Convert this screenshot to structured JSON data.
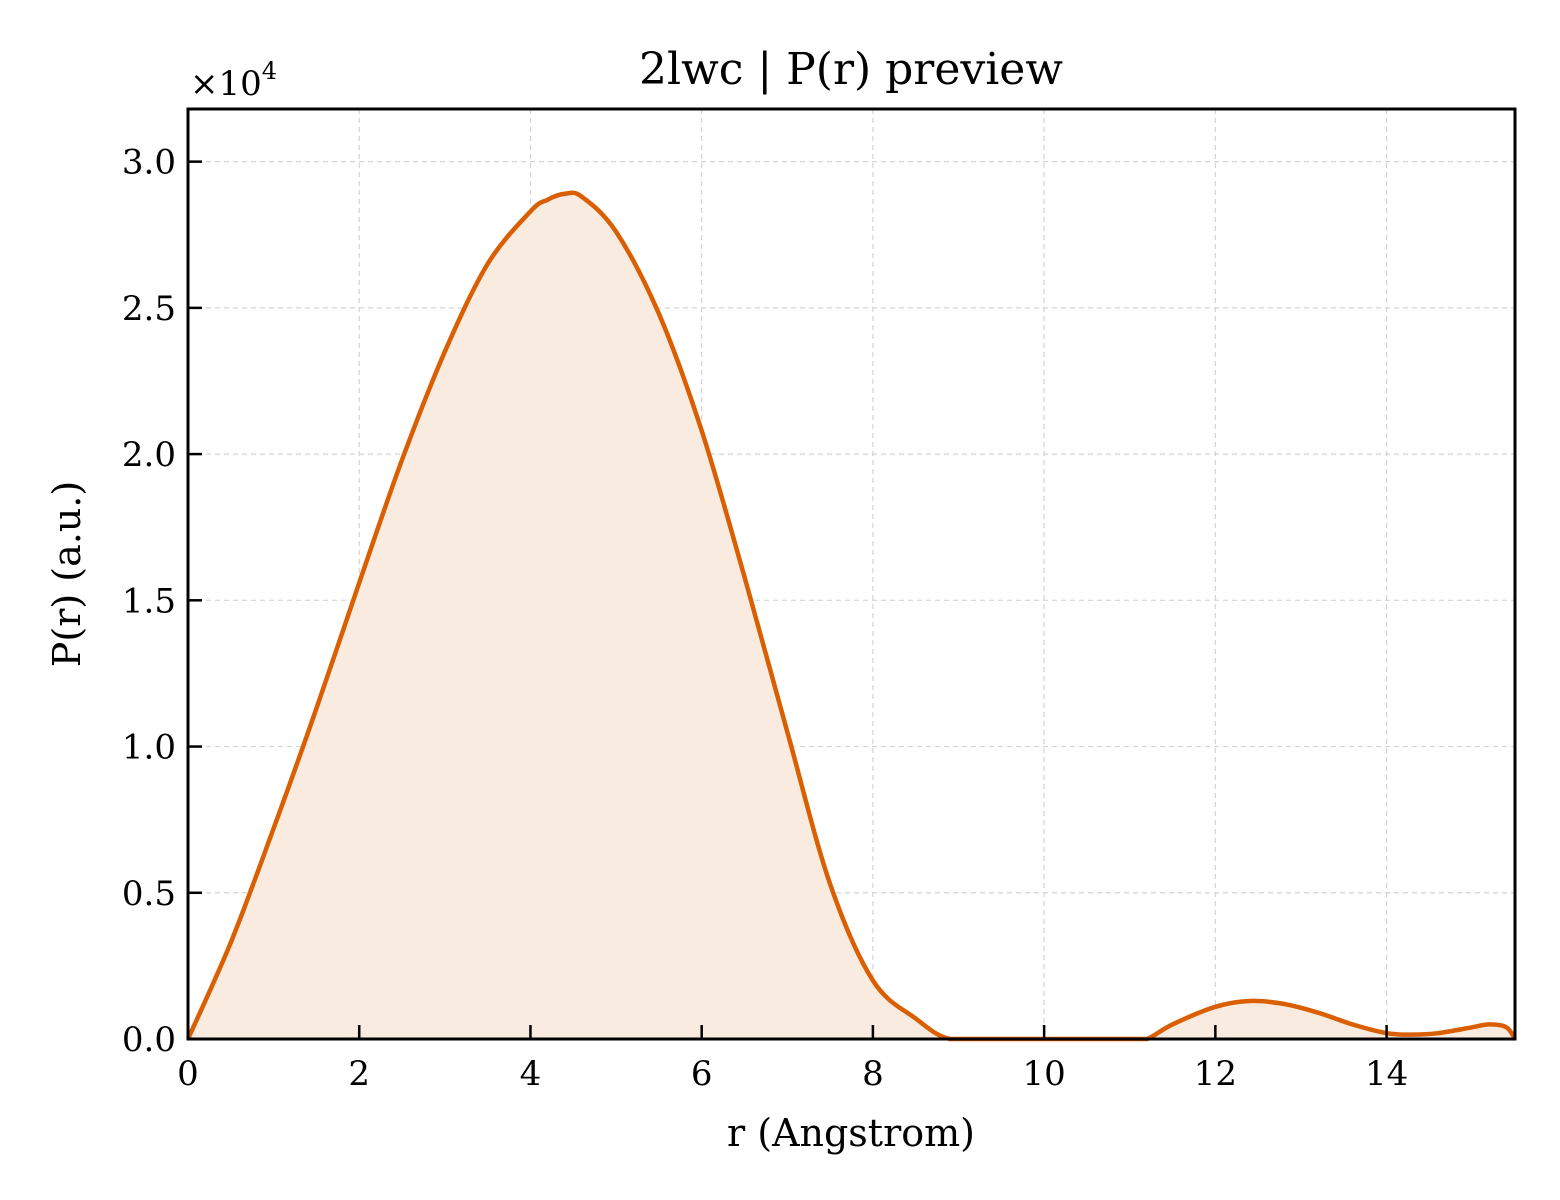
{
  "chart_data": {
    "type": "area",
    "title": "2lwc | P(r) preview",
    "xlabel": "r (Angstrom)",
    "ylabel": "P(r) (a.u.)",
    "y_multiplier_label": "×10",
    "y_multiplier_exponent": "4",
    "xlim": [
      0,
      15.5
    ],
    "ylim": [
      0,
      3.18
    ],
    "xticks": [
      0,
      2,
      4,
      6,
      8,
      10,
      12,
      14
    ],
    "xtick_labels": [
      "0",
      "2",
      "4",
      "6",
      "8",
      "10",
      "12",
      "14"
    ],
    "yticks": [
      0,
      0.5,
      1.0,
      1.5,
      2.0,
      2.5,
      3.0
    ],
    "ytick_labels": [
      "0.0",
      "0.5",
      "1.0",
      "1.5",
      "2.0",
      "2.5",
      "3.0"
    ],
    "grid": true,
    "line_color": "#d95f02",
    "fill_color": "#f9ebe0",
    "series": [
      {
        "x": [
          0,
          0.5,
          1.0,
          1.5,
          2.0,
          2.5,
          3.0,
          3.5,
          4.0,
          4.2,
          4.4,
          4.6,
          5.0,
          5.5,
          6.0,
          6.5,
          7.0,
          7.5,
          8.0,
          8.5,
          8.9,
          9.5,
          10.0,
          10.5,
          11.0,
          11.2,
          11.5,
          12.0,
          12.4,
          12.8,
          13.2,
          13.6,
          14.0,
          14.3,
          14.6,
          15.0,
          15.2,
          15.4,
          15.5
        ],
        "y": [
          0,
          0.33,
          0.72,
          1.13,
          1.56,
          1.98,
          2.35,
          2.65,
          2.83,
          2.87,
          2.89,
          2.88,
          2.76,
          2.48,
          2.08,
          1.58,
          1.05,
          0.53,
          0.2,
          0.07,
          0.0,
          0.0,
          0.0,
          0.0,
          0.0,
          0.0,
          0.05,
          0.11,
          0.13,
          0.12,
          0.09,
          0.05,
          0.02,
          0.015,
          0.02,
          0.04,
          0.05,
          0.04,
          0.0
        ]
      }
    ]
  }
}
